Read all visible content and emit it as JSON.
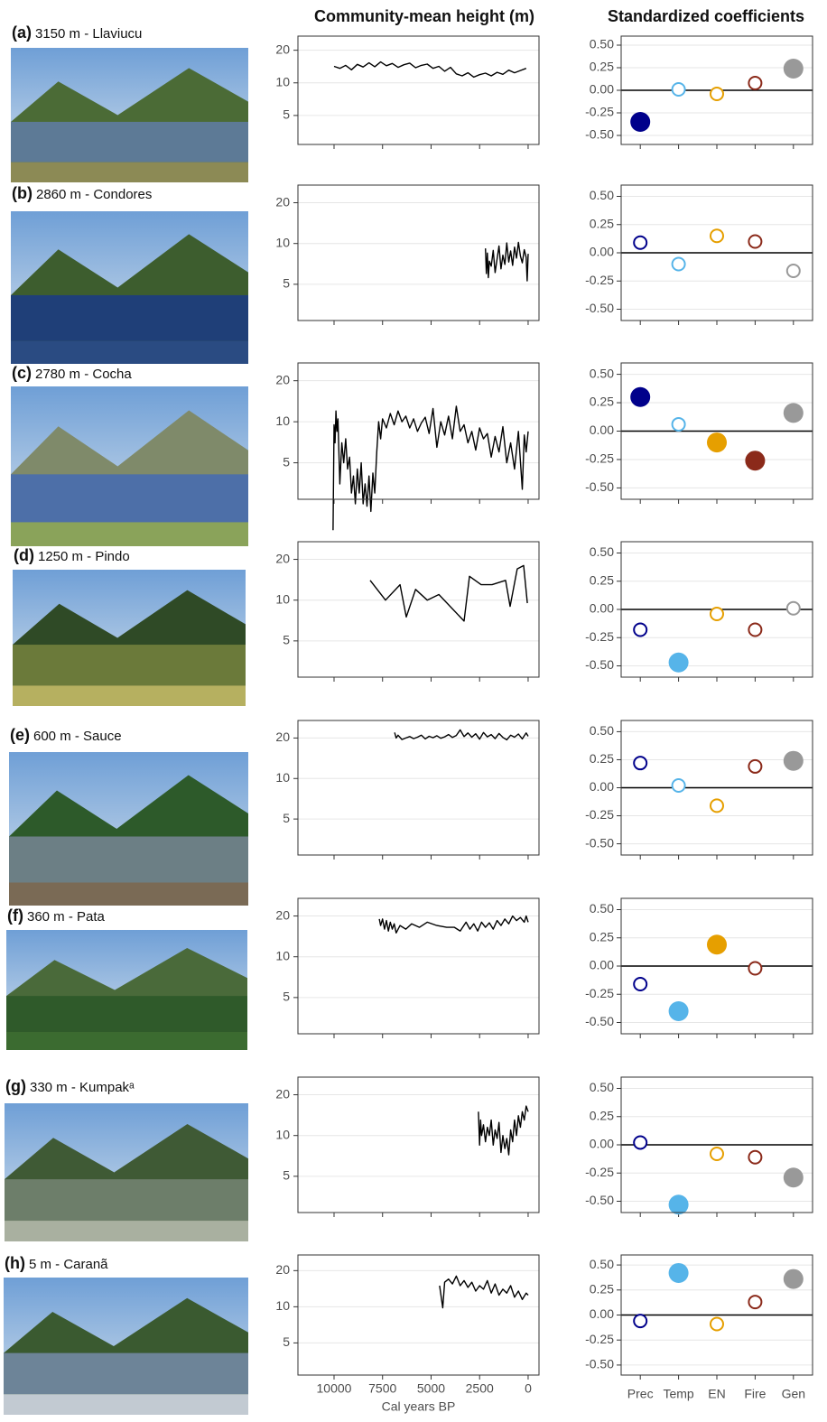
{
  "headers": {
    "height": "Community-mean height (m)",
    "coefficients": "Standardized coefficients"
  },
  "panels": [
    {
      "label": "(a)",
      "site": "3150 m - Llaviucu"
    },
    {
      "label": "(b)",
      "site": "2860 m - Condores"
    },
    {
      "label": "(c)",
      "site": "2780 m - Cocha"
    },
    {
      "label": "(d)",
      "site": "1250 m - Pindo"
    },
    {
      "label": "(e)",
      "site": "600 m - Sauce"
    },
    {
      "label": "(f)",
      "site": "360 m - Pata"
    },
    {
      "label": "(g)",
      "site": "330 m - Kumpakᵃ"
    },
    {
      "label": "(h)",
      "site": "5 m - Caranã"
    }
  ],
  "chart_data": [
    {
      "type": "line",
      "color": "#000000",
      "log_y": true,
      "grid": true,
      "xlim": [
        11860,
        -560
      ],
      "ylim": [
        2.7,
        27
      ],
      "xticks": [
        10000,
        7500,
        5000,
        2500,
        0
      ],
      "yticks": [
        5,
        10,
        20
      ],
      "x": [
        10000,
        9700,
        9400,
        9100,
        8800,
        8500,
        8200,
        7900,
        7600,
        7300,
        7000,
        6700,
        6400,
        6100,
        5800,
        5500,
        5200,
        4900,
        4600,
        4300,
        4000,
        3700,
        3400,
        3100,
        2800,
        2500,
        2200,
        1900,
        1600,
        1300,
        1000,
        700,
        400,
        100
      ],
      "values": [
        14.2,
        13.6,
        14.5,
        13.2,
        14.8,
        14.0,
        15.3,
        14.1,
        15.6,
        14.4,
        15.1,
        13.9,
        14.7,
        15.2,
        13.8,
        14.5,
        14.9,
        13.6,
        14.2,
        12.8,
        13.9,
        12.1,
        11.6,
        12.4,
        11.3,
        11.9,
        12.3,
        11.6,
        12.5,
        12.0,
        13.1,
        12.4,
        13.0,
        13.6
      ]
    },
    {
      "type": "dot",
      "categories": [
        "Prec",
        "Temp",
        "EN",
        "Fire",
        "Gen"
      ],
      "colors": [
        "#00008b",
        "#56b4e9",
        "#e69f00",
        "#8b2a1a",
        "#999999"
      ],
      "grid": true,
      "zero_line": true,
      "ylim": [
        -0.6,
        0.6
      ],
      "yticks": [
        {
          "value": 0.5,
          "label": "0.50"
        },
        0.25,
        {
          "value": 0,
          "label": "0.00"
        },
        -0.25,
        {
          "value": -0.5,
          "label": "-0.50"
        }
      ],
      "values": [
        -0.35,
        0.01,
        -0.04,
        0.08,
        0.24
      ],
      "filled": [
        true,
        false,
        false,
        false,
        true
      ]
    },
    {
      "type": "line",
      "color": "#000000",
      "log_y": true,
      "grid": true,
      "xlim": [
        11860,
        -560
      ],
      "ylim": [
        2.7,
        27
      ],
      "xticks": [
        10000,
        7500,
        5000,
        2500,
        0
      ],
      "yticks": [
        5,
        10,
        20
      ],
      "x": [
        2200,
        2150,
        2100,
        2050,
        2000,
        1900,
        1800,
        1700,
        1600,
        1500,
        1400,
        1300,
        1200,
        1100,
        1000,
        900,
        800,
        700,
        600,
        500,
        400,
        300,
        200,
        100,
        50,
        0
      ],
      "values": [
        9.2,
        6.0,
        8.5,
        5.6,
        7.4,
        6.8,
        8.9,
        6.1,
        7.7,
        9.6,
        6.5,
        8.2,
        7.0,
        10.1,
        7.3,
        8.8,
        6.9,
        9.4,
        7.8,
        10.2,
        8.1,
        7.2,
        9.0,
        7.9,
        5.3,
        8.4
      ]
    },
    {
      "type": "dot",
      "categories": [
        "Prec",
        "Temp",
        "EN",
        "Fire",
        "Gen"
      ],
      "colors": [
        "#00008b",
        "#56b4e9",
        "#e69f00",
        "#8b2a1a",
        "#999999"
      ],
      "grid": true,
      "zero_line": true,
      "ylim": [
        -0.6,
        0.6
      ],
      "yticks": [
        {
          "value": 0.5,
          "label": "0.50"
        },
        0.25,
        {
          "value": 0,
          "label": "0.00"
        },
        -0.25,
        {
          "value": -0.5,
          "label": "-0.50"
        }
      ],
      "values": [
        0.09,
        -0.1,
        0.15,
        0.1,
        -0.16
      ],
      "filled": [
        false,
        false,
        false,
        false,
        false
      ]
    },
    {
      "type": "line",
      "color": "#000000",
      "log_y": true,
      "grid": true,
      "xlim": [
        11860,
        -560
      ],
      "ylim": [
        2.7,
        27
      ],
      "xticks": [
        10000,
        7500,
        5000,
        2500,
        0
      ],
      "yticks": [
        5,
        10,
        20
      ],
      "x": [
        10050,
        10000,
        9950,
        9900,
        9850,
        9800,
        9700,
        9600,
        9500,
        9400,
        9300,
        9200,
        9100,
        9000,
        8900,
        8800,
        8700,
        8600,
        8500,
        8400,
        8300,
        8200,
        8100,
        8000,
        7900,
        7800,
        7700,
        7600,
        7500,
        7300,
        7100,
        6900,
        6700,
        6500,
        6300,
        6100,
        5900,
        5700,
        5500,
        5300,
        5100,
        4900,
        4700,
        4500,
        4300,
        4100,
        3900,
        3700,
        3500,
        3300,
        3100,
        2900,
        2700,
        2500,
        2300,
        2100,
        1900,
        1700,
        1500,
        1300,
        1100,
        900,
        700,
        500,
        300,
        200,
        100,
        0
      ],
      "values": [
        1.6,
        9.5,
        7.0,
        12.0,
        8.5,
        10.5,
        3.5,
        7.0,
        5.0,
        7.5,
        4.5,
        5.5,
        3.0,
        4.0,
        2.5,
        4.5,
        3.0,
        5.0,
        2.5,
        3.5,
        2.4,
        4.0,
        2.2,
        4.2,
        3.0,
        6.0,
        10.0,
        7.5,
        10.5,
        9.0,
        11.5,
        9.5,
        12.0,
        10.0,
        11.0,
        9.0,
        10.5,
        8.5,
        9.8,
        10.8,
        8.2,
        12.5,
        6.5,
        10.0,
        8.0,
        11.0,
        7.5,
        13.0,
        8.5,
        9.5,
        7.0,
        8.5,
        6.2,
        9.0,
        7.5,
        8.2,
        5.5,
        7.8,
        6.0,
        9.2,
        5.0,
        7.0,
        4.5,
        8.5,
        3.2,
        8.0,
        6.0,
        8.5
      ]
    },
    {
      "type": "dot",
      "categories": [
        "Prec",
        "Temp",
        "EN",
        "Fire",
        "Gen"
      ],
      "colors": [
        "#00008b",
        "#56b4e9",
        "#e69f00",
        "#8b2a1a",
        "#999999"
      ],
      "grid": true,
      "zero_line": true,
      "ylim": [
        -0.6,
        0.6
      ],
      "yticks": [
        {
          "value": 0.5,
          "label": "0.50"
        },
        0.25,
        {
          "value": 0,
          "label": "0.00"
        },
        -0.25,
        {
          "value": -0.5,
          "label": "-0.50"
        }
      ],
      "values": [
        0.3,
        0.06,
        -0.1,
        -0.26,
        0.16
      ],
      "filled": [
        true,
        false,
        true,
        true,
        true
      ]
    },
    {
      "type": "line",
      "color": "#000000",
      "log_y": true,
      "grid": true,
      "xlim": [
        11860,
        -560
      ],
      "ylim": [
        2.7,
        27
      ],
      "xticks": [
        10000,
        7500,
        5000,
        2500,
        0
      ],
      "yticks": [
        5,
        10,
        20
      ],
      "x": [
        8140,
        7350,
        6600,
        6280,
        5800,
        5200,
        4600,
        3300,
        3020,
        2420,
        1860,
        1160,
        930,
        560,
        230,
        40
      ],
      "values": [
        14,
        10,
        13,
        7.5,
        12,
        10,
        11,
        7,
        15,
        13,
        13,
        14,
        9,
        17,
        18,
        9.5
      ]
    },
    {
      "type": "dot",
      "categories": [
        "Prec",
        "Temp",
        "EN",
        "Fire",
        "Gen"
      ],
      "colors": [
        "#00008b",
        "#56b4e9",
        "#e69f00",
        "#8b2a1a",
        "#999999"
      ],
      "grid": true,
      "zero_line": true,
      "ylim": [
        -0.6,
        0.6
      ],
      "yticks": [
        {
          "value": 0.5,
          "label": "0.50"
        },
        0.25,
        {
          "value": 0,
          "label": "0.00"
        },
        -0.25,
        {
          "value": -0.5,
          "label": "-0.50"
        }
      ],
      "values": [
        -0.18,
        -0.47,
        -0.04,
        -0.18,
        0.01
      ],
      "filled": [
        false,
        true,
        false,
        false,
        false
      ]
    },
    {
      "type": "line",
      "color": "#000000",
      "log_y": true,
      "grid": true,
      "xlim": [
        11860,
        -560
      ],
      "ylim": [
        2.7,
        27
      ],
      "xticks": [
        10000,
        7500,
        5000,
        2500,
        0
      ],
      "yticks": [
        5,
        10,
        20
      ],
      "x": [
        6880,
        6800,
        6700,
        6500,
        6300,
        6100,
        5900,
        5700,
        5500,
        5300,
        5100,
        4900,
        4700,
        4500,
        4300,
        4100,
        3900,
        3700,
        3500,
        3300,
        3100,
        2900,
        2700,
        2500,
        2300,
        2100,
        1900,
        1700,
        1500,
        1300,
        1100,
        900,
        700,
        500,
        300,
        100,
        0
      ],
      "values": [
        22,
        20,
        21,
        19.5,
        20,
        20.5,
        19.8,
        20.3,
        21,
        19.7,
        20.6,
        20.1,
        20.8,
        19.9,
        20.4,
        21.2,
        20.2,
        20.9,
        23,
        20.5,
        21.8,
        20.3,
        21.5,
        19.6,
        22,
        20.4,
        21.2,
        19.8,
        21.6,
        20.2,
        19.4,
        21.0,
        20.3,
        21.4,
        19.7,
        21.8,
        20.6
      ]
    },
    {
      "type": "dot",
      "categories": [
        "Prec",
        "Temp",
        "EN",
        "Fire",
        "Gen"
      ],
      "colors": [
        "#00008b",
        "#56b4e9",
        "#e69f00",
        "#8b2a1a",
        "#999999"
      ],
      "grid": true,
      "zero_line": true,
      "ylim": [
        -0.6,
        0.6
      ],
      "yticks": [
        {
          "value": 0.5,
          "label": "0.50"
        },
        0.25,
        {
          "value": 0,
          "label": "0.00"
        },
        -0.25,
        {
          "value": -0.5,
          "label": "-0.50"
        }
      ],
      "values": [
        0.22,
        0.02,
        -0.16,
        0.19,
        0.24
      ],
      "filled": [
        false,
        false,
        false,
        false,
        true
      ]
    },
    {
      "type": "line",
      "color": "#000000",
      "log_y": true,
      "grid": true,
      "xlim": [
        11860,
        -560
      ],
      "ylim": [
        2.7,
        27
      ],
      "xticks": [
        10000,
        7500,
        5000,
        2500,
        0
      ],
      "yticks": [
        5,
        10,
        20
      ],
      "x": [
        7670,
        7600,
        7500,
        7400,
        7300,
        7200,
        7100,
        7000,
        6900,
        6800,
        6600,
        6300,
        6000,
        5600,
        5200,
        4700,
        4200,
        3800,
        3500,
        3200,
        3000,
        2800,
        2600,
        2400,
        2200,
        2000,
        1800,
        1600,
        1400,
        1200,
        1000,
        800,
        600,
        400,
        200,
        100,
        0
      ],
      "values": [
        19,
        17,
        19,
        16,
        18.5,
        15.5,
        18,
        16,
        17.5,
        15,
        17,
        16,
        17.5,
        16.5,
        18,
        17,
        16.5,
        16.5,
        15.5,
        18,
        16,
        17.5,
        15.5,
        18,
        16.5,
        17.8,
        16,
        18.5,
        17,
        19,
        17.5,
        20,
        18.5,
        19.5,
        18,
        20,
        18
      ]
    },
    {
      "type": "dot",
      "categories": [
        "Prec",
        "Temp",
        "EN",
        "Fire",
        "Gen"
      ],
      "colors": [
        "#00008b",
        "#56b4e9",
        "#e69f00",
        "#8b2a1a",
        "#999999"
      ],
      "grid": true,
      "zero_line": true,
      "ylim": [
        -0.6,
        0.6
      ],
      "yticks": [
        {
          "value": 0.5,
          "label": "0.50"
        },
        0.25,
        {
          "value": 0,
          "label": "0.00"
        },
        -0.25,
        {
          "value": -0.5,
          "label": "-0.50"
        }
      ],
      "values": [
        -0.16,
        -0.4,
        0.19,
        -0.02,
        null
      ],
      "filled": [
        false,
        true,
        true,
        false,
        false
      ]
    },
    {
      "type": "line",
      "color": "#000000",
      "log_y": true,
      "grid": true,
      "xlim": [
        11860,
        -560
      ],
      "ylim": [
        2.7,
        27
      ],
      "xticks": [
        10000,
        7500,
        5000,
        2500,
        0
      ],
      "yticks": [
        5,
        10,
        20
      ],
      "x": [
        2560,
        2500,
        2450,
        2400,
        2300,
        2200,
        2100,
        2000,
        1900,
        1800,
        1700,
        1600,
        1500,
        1400,
        1300,
        1200,
        1100,
        1000,
        900,
        800,
        700,
        600,
        500,
        400,
        300,
        200,
        100,
        0
      ],
      "values": [
        15,
        8.5,
        13,
        10,
        12,
        9,
        11.5,
        10,
        13,
        8.5,
        11,
        9.5,
        12.5,
        7.5,
        10,
        8,
        9.5,
        7.2,
        11,
        9,
        13,
        10,
        14,
        11.5,
        15,
        13,
        16.5,
        15
      ]
    },
    {
      "type": "dot",
      "categories": [
        "Prec",
        "Temp",
        "EN",
        "Fire",
        "Gen"
      ],
      "colors": [
        "#00008b",
        "#56b4e9",
        "#e69f00",
        "#8b2a1a",
        "#999999"
      ],
      "grid": true,
      "zero_line": true,
      "ylim": [
        -0.6,
        0.6
      ],
      "yticks": [
        {
          "value": 0.5,
          "label": "0.50"
        },
        0.25,
        {
          "value": 0,
          "label": "0.00"
        },
        -0.25,
        {
          "value": -0.5,
          "label": "-0.50"
        }
      ],
      "values": [
        0.02,
        -0.53,
        -0.08,
        -0.11,
        -0.29
      ],
      "filled": [
        false,
        true,
        false,
        false,
        true
      ]
    },
    {
      "type": "line",
      "color": "#000000",
      "log_y": true,
      "grid": true,
      "xlim": [
        11860,
        -560
      ],
      "ylim": [
        2.7,
        27
      ],
      "xticks": [
        10000,
        7500,
        5000,
        2500,
        0
      ],
      "yticks": [
        5,
        10,
        20
      ],
      "xlabel": "Cal years BP",
      "x": [
        4560,
        4400,
        4300,
        4100,
        3900,
        3700,
        3500,
        3300,
        3100,
        2900,
        2700,
        2500,
        2300,
        2100,
        1900,
        1700,
        1500,
        1300,
        1100,
        900,
        700,
        500,
        300,
        100,
        0
      ],
      "values": [
        15,
        9.8,
        16,
        17,
        15.5,
        18,
        15,
        16.5,
        14.5,
        16,
        13.5,
        15,
        14,
        16.5,
        13,
        15.5,
        12.5,
        14,
        13,
        15,
        12,
        13.5,
        11.5,
        13,
        12.5
      ]
    },
    {
      "type": "dot",
      "categories": [
        "Prec",
        "Temp",
        "EN",
        "Fire",
        "Gen"
      ],
      "colors": [
        "#00008b",
        "#56b4e9",
        "#e69f00",
        "#8b2a1a",
        "#999999"
      ],
      "grid": true,
      "zero_line": true,
      "ylim": [
        -0.6,
        0.6
      ],
      "yticks": [
        {
          "value": 0.5,
          "label": "0.50"
        },
        0.25,
        {
          "value": 0,
          "label": "0.00"
        },
        -0.25,
        {
          "value": -0.5,
          "label": "-0.50"
        }
      ],
      "values": [
        -0.06,
        0.42,
        -0.09,
        0.13,
        0.36
      ],
      "filled": [
        false,
        true,
        false,
        false,
        true
      ]
    }
  ]
}
